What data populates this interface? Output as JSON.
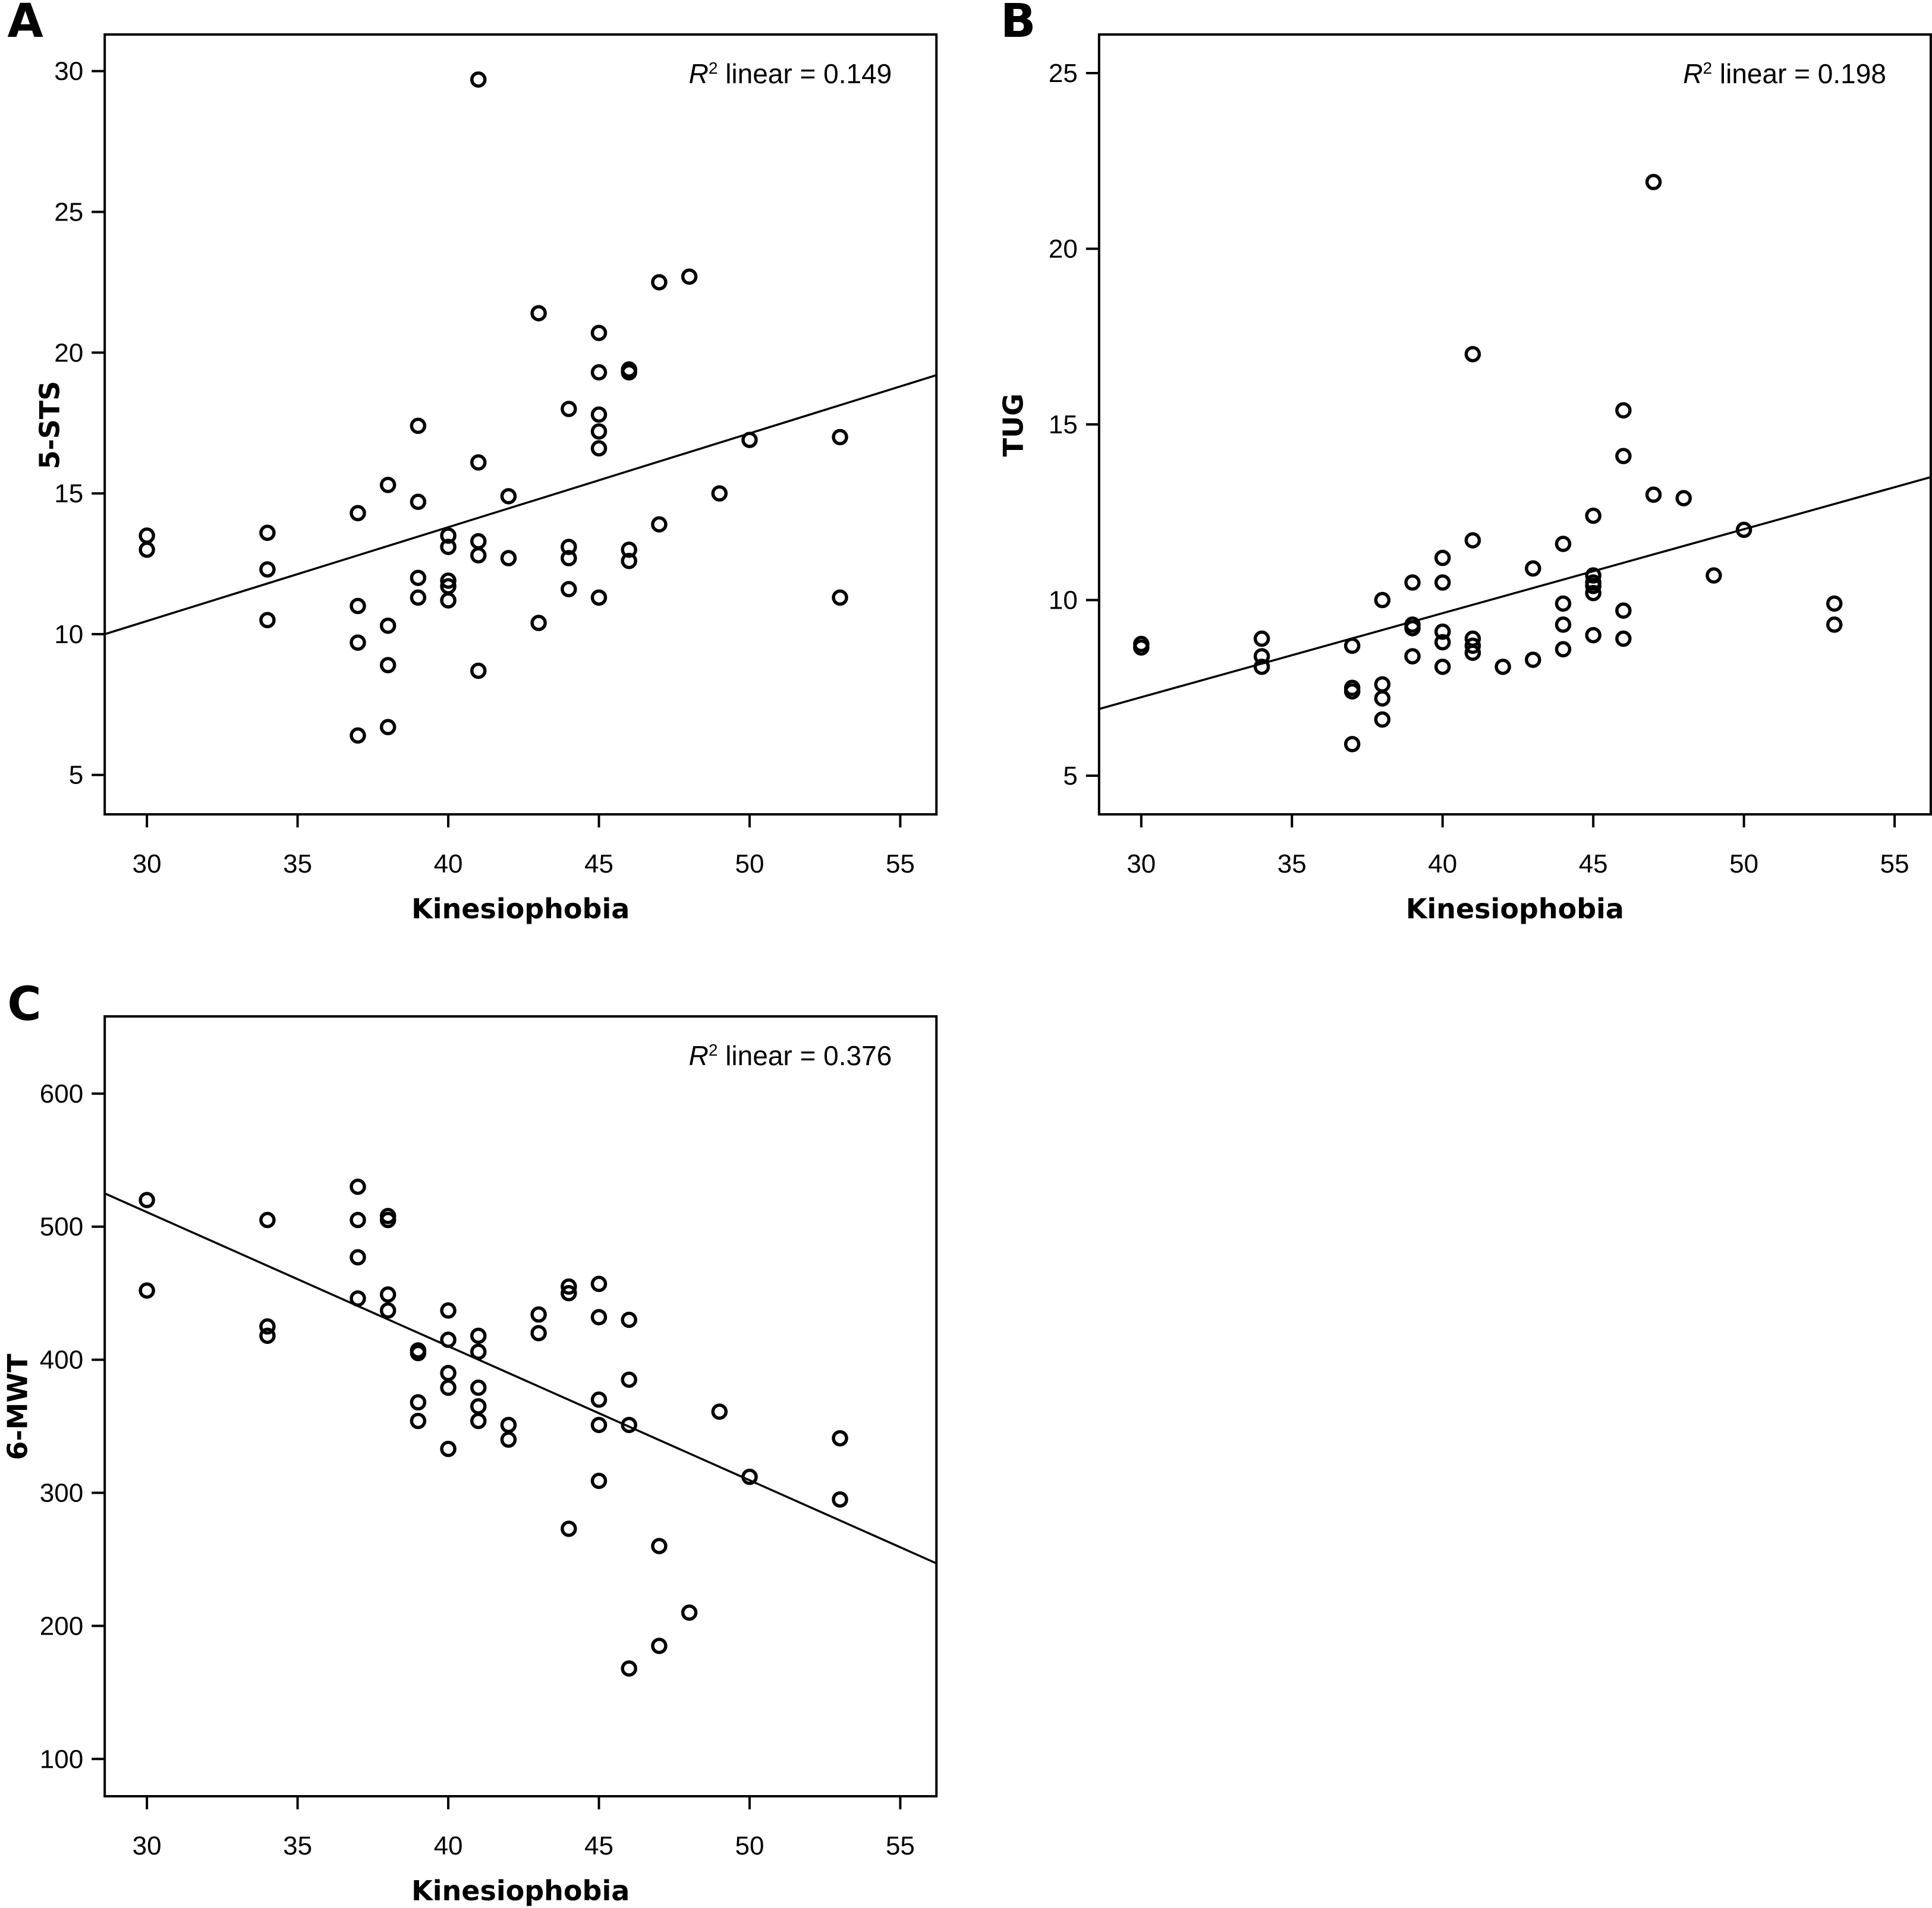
{
  "chart_data": [
    {
      "panel": "A",
      "type": "scatter",
      "title": "",
      "xlabel": "Kinesiophobia",
      "ylabel": "5-STS",
      "xlim": [
        28.6,
        56.2
      ],
      "ylim": [
        3.6,
        31.3
      ],
      "xticks": [
        30,
        35,
        40,
        45,
        50,
        55
      ],
      "yticks": [
        5,
        10,
        15,
        20,
        25,
        30
      ],
      "annotation": {
        "r_symbol": "R",
        "superscript": "2",
        "text": " linear = 0.149"
      },
      "fit_line": {
        "x": [
          28.6,
          56.2
        ],
        "y": [
          10.0,
          19.2
        ]
      },
      "grid": false,
      "points": [
        [
          30,
          13.5
        ],
        [
          30,
          13.0
        ],
        [
          34,
          13.6
        ],
        [
          34,
          12.3
        ],
        [
          34,
          10.5
        ],
        [
          37,
          14.3
        ],
        [
          37,
          11.0
        ],
        [
          37,
          9.7
        ],
        [
          37,
          6.4
        ],
        [
          38,
          15.3
        ],
        [
          38,
          10.3
        ],
        [
          38,
          8.9
        ],
        [
          38,
          6.7
        ],
        [
          39,
          17.4
        ],
        [
          39,
          14.7
        ],
        [
          39,
          12.0
        ],
        [
          39,
          11.3
        ],
        [
          40,
          13.5
        ],
        [
          40,
          13.1
        ],
        [
          40,
          11.9
        ],
        [
          40,
          11.7
        ],
        [
          40,
          11.2
        ],
        [
          41,
          29.7
        ],
        [
          41,
          16.1
        ],
        [
          41,
          13.3
        ],
        [
          41,
          12.8
        ],
        [
          41,
          8.7
        ],
        [
          42,
          14.9
        ],
        [
          42,
          12.7
        ],
        [
          43,
          21.4
        ],
        [
          43,
          10.4
        ],
        [
          44,
          18.0
        ],
        [
          44,
          13.1
        ],
        [
          44,
          12.7
        ],
        [
          44,
          11.6
        ],
        [
          45,
          20.7
        ],
        [
          45,
          19.3
        ],
        [
          45,
          17.8
        ],
        [
          45,
          17.2
        ],
        [
          45,
          16.6
        ],
        [
          45,
          11.3
        ],
        [
          46,
          19.4
        ],
        [
          46,
          19.3
        ],
        [
          46,
          13.0
        ],
        [
          46,
          12.6
        ],
        [
          47,
          22.5
        ],
        [
          47,
          13.9
        ],
        [
          48,
          22.7
        ],
        [
          49,
          15.0
        ],
        [
          50,
          16.9
        ],
        [
          53,
          17.0
        ],
        [
          53,
          11.3
        ]
      ]
    },
    {
      "panel": "B",
      "type": "scatter",
      "title": "",
      "xlabel": "Kinesiophobia",
      "ylabel": "TUG",
      "xlim": [
        28.6,
        56.2
      ],
      "ylim": [
        3.9,
        26.1
      ],
      "xticks": [
        30,
        35,
        40,
        45,
        50,
        55
      ],
      "yticks": [
        5,
        10,
        15,
        20,
        25
      ],
      "annotation": {
        "r_symbol": "R",
        "superscript": "2",
        "text": " linear = 0.198"
      },
      "fit_line": {
        "x": [
          28.6,
          56.2
        ],
        "y": [
          6.9,
          13.5
        ]
      },
      "grid": false,
      "points": [
        [
          30,
          8.75
        ],
        [
          30,
          8.65
        ],
        [
          34,
          8.9
        ],
        [
          34,
          8.4
        ],
        [
          34,
          8.1
        ],
        [
          37,
          8.7
        ],
        [
          37,
          7.5
        ],
        [
          37,
          7.4
        ],
        [
          37,
          5.9
        ],
        [
          38,
          10.0
        ],
        [
          38,
          7.6
        ],
        [
          38,
          7.2
        ],
        [
          38,
          6.6
        ],
        [
          39,
          10.5
        ],
        [
          39,
          9.3
        ],
        [
          39,
          9.2
        ],
        [
          39,
          8.4
        ],
        [
          40,
          11.2
        ],
        [
          40,
          10.5
        ],
        [
          40,
          9.1
        ],
        [
          40,
          8.8
        ],
        [
          40,
          8.1
        ],
        [
          41,
          17.0
        ],
        [
          41,
          11.7
        ],
        [
          41,
          8.9
        ],
        [
          41,
          8.7
        ],
        [
          41,
          8.5
        ],
        [
          42,
          8.1
        ],
        [
          43,
          10.9
        ],
        [
          43,
          8.3
        ],
        [
          44,
          11.6
        ],
        [
          44,
          9.9
        ],
        [
          44,
          9.3
        ],
        [
          44,
          8.6
        ],
        [
          45,
          12.4
        ],
        [
          45,
          10.7
        ],
        [
          45,
          10.5
        ],
        [
          45,
          10.4
        ],
        [
          45,
          10.2
        ],
        [
          45,
          9.0
        ],
        [
          46,
          15.4
        ],
        [
          46,
          14.1
        ],
        [
          46,
          9.7
        ],
        [
          46,
          8.9
        ],
        [
          47,
          21.9
        ],
        [
          47,
          13.0
        ],
        [
          48,
          12.9
        ],
        [
          49,
          10.7
        ],
        [
          50,
          12.0
        ],
        [
          53,
          9.9
        ],
        [
          53,
          9.3
        ]
      ]
    },
    {
      "panel": "C",
      "type": "scatter",
      "title": "",
      "xlabel": "Kinesiophobia",
      "ylabel": "6-MWT",
      "xlim": [
        28.6,
        56.2
      ],
      "ylim": [
        72,
        658
      ],
      "xticks": [
        30,
        35,
        40,
        45,
        50,
        55
      ],
      "yticks": [
        100,
        200,
        300,
        400,
        500,
        600
      ],
      "annotation": {
        "r_symbol": "R",
        "superscript": "2",
        "text": " linear = 0.376"
      },
      "fit_line": {
        "x": [
          28.6,
          56.2
        ],
        "y": [
          525,
          247
        ]
      },
      "grid": false,
      "points": [
        [
          30,
          520
        ],
        [
          30,
          452
        ],
        [
          34,
          505
        ],
        [
          34,
          425
        ],
        [
          34,
          418
        ],
        [
          37,
          530
        ],
        [
          37,
          505
        ],
        [
          37,
          477
        ],
        [
          37,
          446
        ],
        [
          38,
          508
        ],
        [
          38,
          505
        ],
        [
          38,
          449
        ],
        [
          38,
          437
        ],
        [
          39,
          407
        ],
        [
          39,
          405
        ],
        [
          39,
          368
        ],
        [
          39,
          354
        ],
        [
          40,
          437
        ],
        [
          40,
          415
        ],
        [
          40,
          390
        ],
        [
          40,
          379
        ],
        [
          40,
          333
        ],
        [
          41,
          418
        ],
        [
          41,
          406
        ],
        [
          41,
          379
        ],
        [
          41,
          365
        ],
        [
          41,
          354
        ],
        [
          42,
          351
        ],
        [
          42,
          340
        ],
        [
          43,
          434
        ],
        [
          43,
          420
        ],
        [
          44,
          455
        ],
        [
          44,
          450
        ],
        [
          44,
          273
        ],
        [
          45,
          457
        ],
        [
          45,
          432
        ],
        [
          45,
          370
        ],
        [
          45,
          351
        ],
        [
          45,
          309
        ],
        [
          46,
          430
        ],
        [
          46,
          385
        ],
        [
          46,
          351
        ],
        [
          46,
          168
        ],
        [
          47,
          260
        ],
        [
          47,
          185
        ],
        [
          48,
          210
        ],
        [
          49,
          361
        ],
        [
          50,
          312
        ],
        [
          53,
          341
        ],
        [
          53,
          295
        ]
      ]
    }
  ]
}
